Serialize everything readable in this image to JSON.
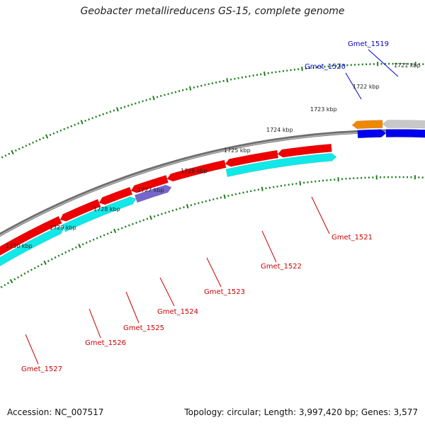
{
  "title": "Geobacter metallireducens GS-15, complete genome",
  "footer": {
    "accession": "Accession: NC_007517",
    "topology": "Topology: circular; Length: 3,997,420 bp; Genes: 3,577"
  },
  "colors": {
    "backbone": "#888888",
    "tick": "#1e7d1e",
    "red_gene": "#ee0000",
    "cyan_gene": "#11e8e8",
    "purple_gene": "#7766cc",
    "blue_gene": "#0000ee",
    "orange_gene": "#ee8800",
    "gray_gene": "#c8c8c8",
    "red_label": "#cc0000",
    "blue_label": "#0000cc"
  },
  "scale": {
    "tick_labels": [
      "1721 kbp",
      "1722 kbp",
      "1723 kbp",
      "1724 kbp",
      "1725 kbp",
      "1726 kbp",
      "1727 kbp",
      "1728 kbp",
      "1729 kbp",
      "1730 kbp"
    ]
  },
  "genes": [
    {
      "name": "Gmet_1519",
      "label_color": "blue",
      "fill": "blue"
    },
    {
      "name": "Gmet_1520",
      "label_color": "blue",
      "fill": "orange"
    },
    {
      "name": "Gmet_1521",
      "label_color": "red",
      "fill": "red"
    },
    {
      "name": "Gmet_1522",
      "label_color": "red",
      "fill": "cyan"
    },
    {
      "name": "Gmet_1523",
      "label_color": "red",
      "fill": "red"
    },
    {
      "name": "Gmet_1524",
      "label_color": "red",
      "fill": "purple"
    },
    {
      "name": "Gmet_1525",
      "label_color": "red",
      "fill": "cyan"
    },
    {
      "name": "Gmet_1526",
      "label_color": "red",
      "fill": "cyan"
    },
    {
      "name": "Gmet_1527",
      "label_color": "red",
      "fill": "red"
    }
  ]
}
